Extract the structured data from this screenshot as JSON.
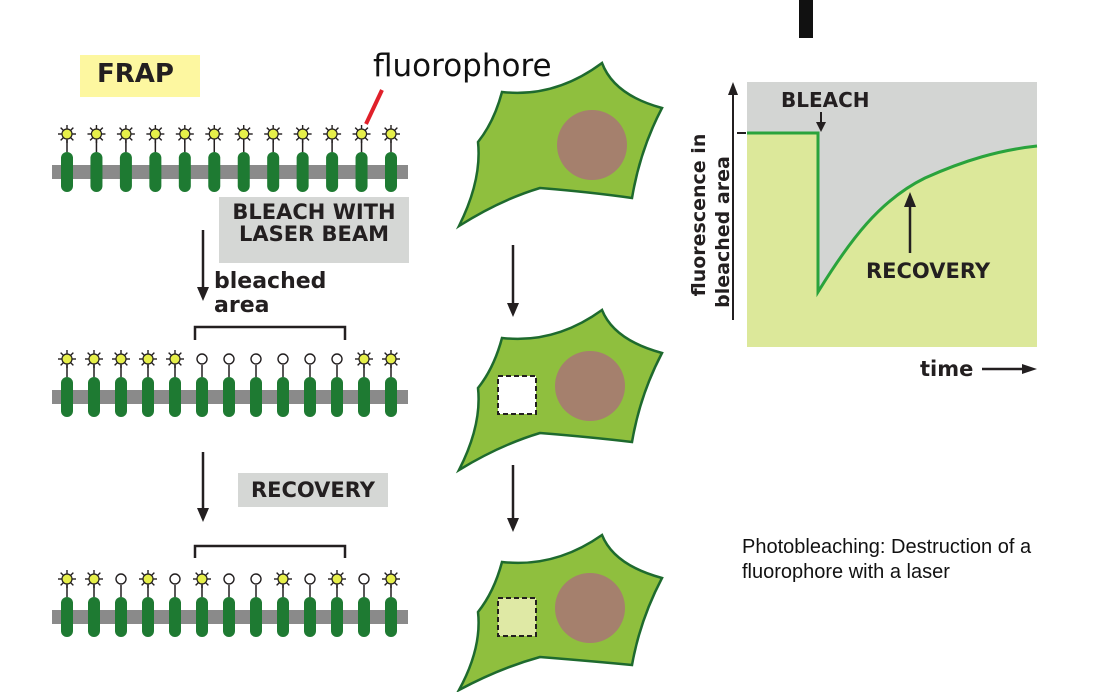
{
  "frap": {
    "title": "FRAP",
    "fluorophore_label": "fluorophore",
    "bleach_step": [
      "BLEACH WITH",
      "LASER BEAM"
    ],
    "bleached_area_label": [
      "bleached",
      "area"
    ],
    "recovery_step": "RECOVERY",
    "row1_pattern": "FFFFFFFFFFFF",
    "row2_pattern": "FFFFFOOOOOOFF",
    "row3_pattern": "FFOFOFOOFOFOF"
  },
  "graph": {
    "bleach_label": "BLEACH",
    "recovery_label": "RECOVERY",
    "ylabel_line1": "fluorescence in",
    "ylabel_line2": "bleached area",
    "xlabel": "time"
  },
  "caption": {
    "line1": "Photobleaching: Destruction of a",
    "line2": "fluorophore with a laser"
  },
  "colors": {
    "protein_green": "#1e7a32",
    "fluorophore_yellow": "#e6ef4a",
    "cell_green": "#8fbf3e",
    "nucleus_brown": "#a5806d",
    "graph_grey": "#d3d5d3",
    "graph_fill": "#dce89a",
    "curve_green": "#2aa33c",
    "title_highlight": "#fdf7a0"
  }
}
